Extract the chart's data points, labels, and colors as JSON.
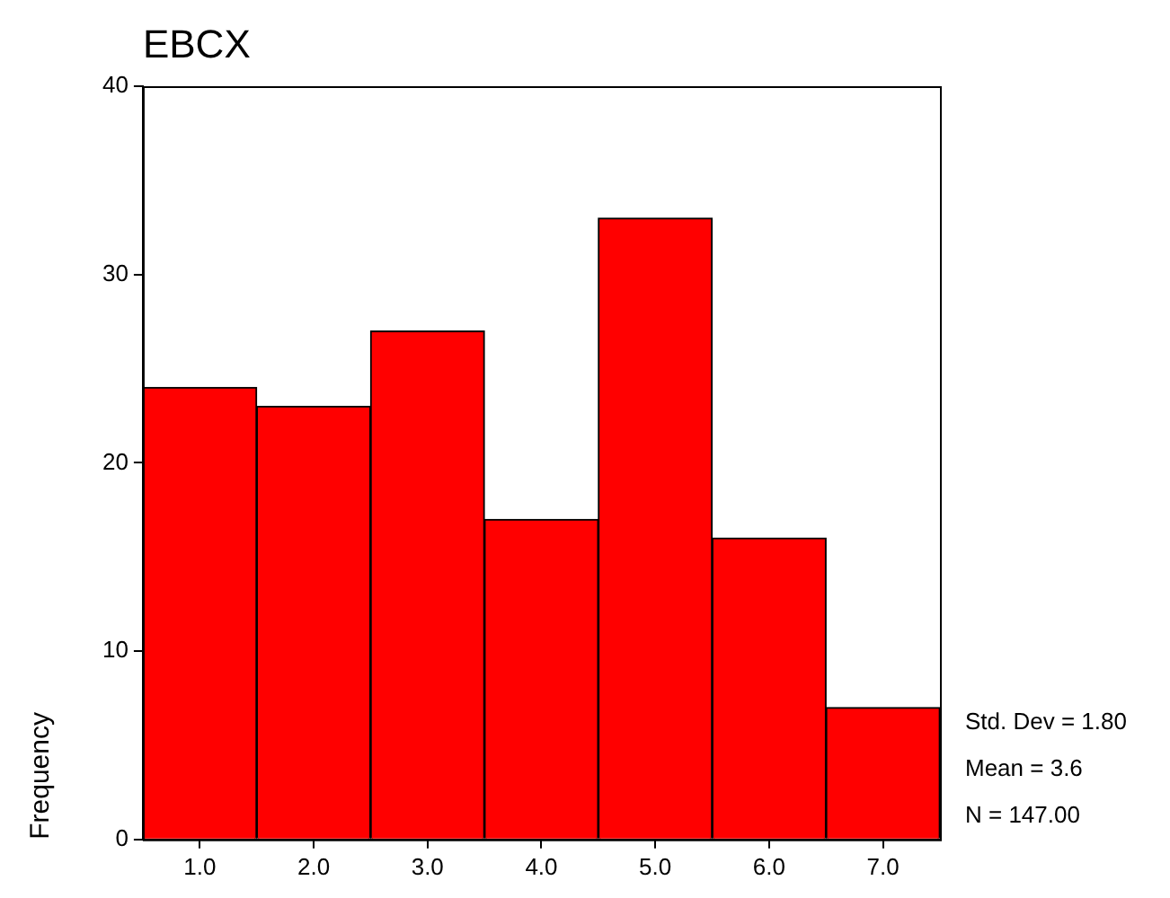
{
  "chart_data": {
    "type": "histogram",
    "title": "EBCX",
    "ylabel": "Frequency",
    "bins": [
      0.5,
      1.5,
      2.5,
      3.5,
      4.5,
      5.5,
      6.5,
      7.5
    ],
    "values": [
      24,
      23,
      27,
      17,
      33,
      16,
      7
    ],
    "color": "#ff0000",
    "xlim": [
      0.5,
      7.5
    ],
    "xticks": [
      {
        "value": 1,
        "label": "1.0"
      },
      {
        "value": 2,
        "label": "2.0"
      },
      {
        "value": 3,
        "label": "3.0"
      },
      {
        "value": 4,
        "label": "4.0"
      },
      {
        "value": 5,
        "label": "5.0"
      },
      {
        "value": 6,
        "label": "6.0"
      },
      {
        "value": 7,
        "label": "7.0"
      }
    ],
    "ylim": [
      0,
      40
    ],
    "yticks": [
      0,
      10,
      20,
      30,
      40
    ],
    "annotations": [
      "Std. Dev = 1.80",
      "Mean = 3.6",
      "N = 147.00"
    ]
  }
}
